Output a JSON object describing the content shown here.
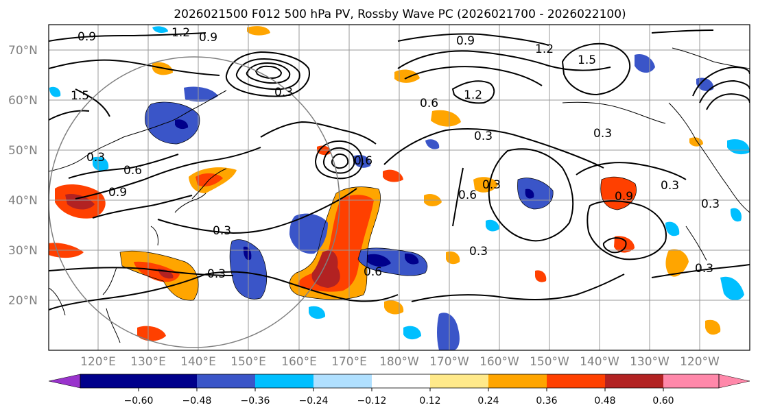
{
  "title": "2026021500 F012 500 hPa PV, Rossby Wave PC (2026021700 - 2026022100)",
  "lat_labels": [
    "70°N",
    "60°N",
    "50°N",
    "40°N",
    "30°N",
    "20°N"
  ],
  "lon_labels": [
    "120°E",
    "130°E",
    "140°E",
    "150°E",
    "160°E",
    "170°E",
    "180°W",
    "170°W",
    "160°W",
    "150°W",
    "140°W",
    "130°W",
    "120°W"
  ],
  "colorbar": {
    "colors": [
      "#9933cc",
      "#00008b",
      "#3a55c8",
      "#00bfff",
      "#b0e0ff",
      "#ffffff",
      "#ffe98a",
      "#ffa500",
      "#ff4000",
      "#b22222",
      "#ff88aa"
    ],
    "tick_labels": [
      "−0.60",
      "−0.48",
      "−0.36",
      "−0.24",
      "−0.12",
      "0.12",
      "0.24",
      "0.36",
      "0.48",
      "0.60"
    ]
  },
  "contour_labels": [
    "0.9",
    "1.2",
    "0.9",
    "0.9",
    "1.2",
    "1.5",
    "1.2",
    "1.5",
    "0.6",
    "0.6",
    "0.3",
    "0.3",
    "0.6",
    "0.9",
    "0.3",
    "0.3",
    "0.6",
    "0.3",
    "0.9",
    "0.3",
    "0.3",
    "0.3",
    "0.3",
    "0.6",
    "0.3",
    "0.3"
  ]
}
